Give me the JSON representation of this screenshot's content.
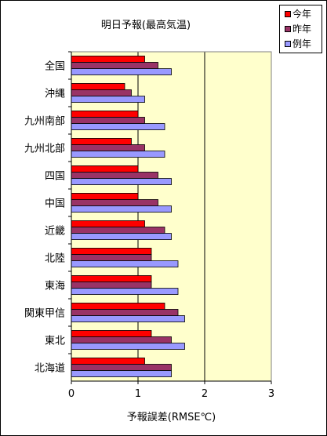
{
  "chart_data": {
    "type": "bar",
    "orientation": "horizontal",
    "title": "明日予報(最高気温)",
    "xlabel": "予報誤差(RMSE℃)",
    "ylabel": "",
    "xlim": [
      0,
      3
    ],
    "xticks": [
      "0",
      "1",
      "2",
      "3"
    ],
    "categories": [
      "全国",
      "沖縄",
      "九州南部",
      "九州北部",
      "四国",
      "中国",
      "近畿",
      "北陸",
      "東海",
      "関東甲信",
      "東北",
      "北海道"
    ],
    "series": [
      {
        "name": "今年",
        "color": "#ff0000",
        "values": [
          1.1,
          0.8,
          1.0,
          0.9,
          1.0,
          1.0,
          1.1,
          1.2,
          1.2,
          1.4,
          1.2,
          1.1
        ]
      },
      {
        "name": "昨年",
        "color": "#993366",
        "values": [
          1.3,
          0.9,
          1.1,
          1.1,
          1.3,
          1.3,
          1.4,
          1.2,
          1.2,
          1.6,
          1.5,
          1.5
        ]
      },
      {
        "name": "例年",
        "color": "#9999ff",
        "values": [
          1.5,
          1.1,
          1.4,
          1.4,
          1.5,
          1.5,
          1.5,
          1.6,
          1.6,
          1.7,
          1.7,
          1.5
        ]
      }
    ],
    "plot_background": "#ffffcc",
    "gridlines": "vertical at major ticks",
    "legend_position": "top-right"
  }
}
